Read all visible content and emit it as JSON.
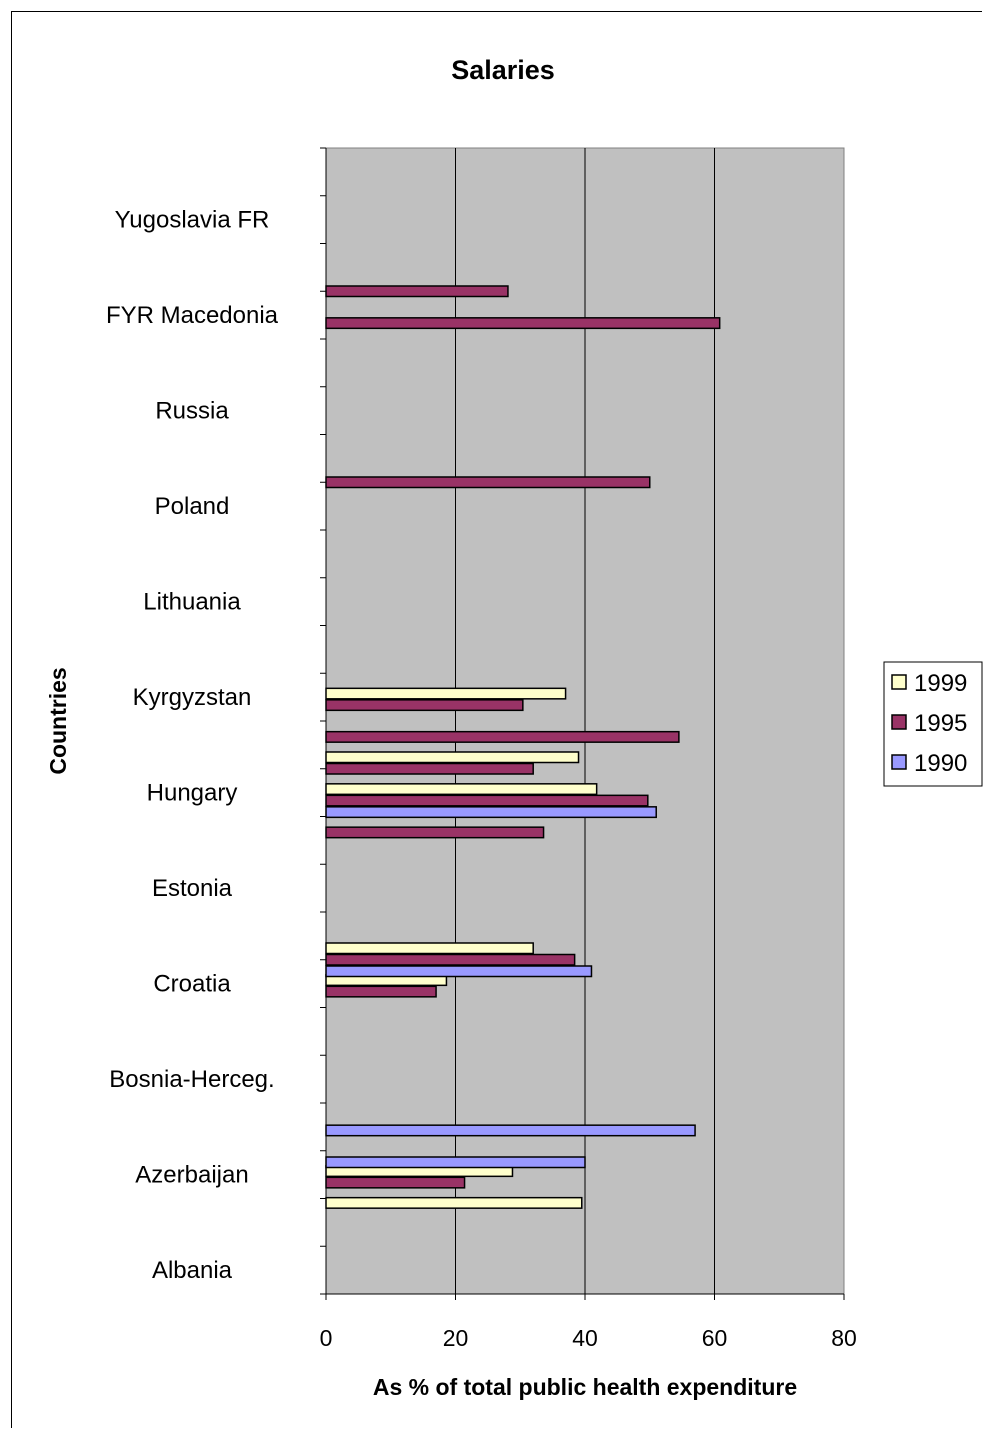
{
  "chart_data": {
    "type": "bar",
    "orientation": "horizontal",
    "title": "Salaries",
    "xlabel": "As % of total public health expenditure",
    "ylabel": "Countries",
    "xlim": [
      0,
      80
    ],
    "xticks": [
      "0",
      "20",
      "40",
      "60",
      "80"
    ],
    "grid": true,
    "legend_position": "right",
    "labeled_categories": [
      "Yugoslavia FR",
      "FYR Macedonia",
      "Russia",
      "Poland",
      "Lithuania",
      "Kyrgyzstan",
      "Hungary",
      "Estonia",
      "Croatia",
      "Bosnia-Herceg.",
      "Azerbaijan",
      "Albania"
    ],
    "series": [
      {
        "name": "1999",
        "color": "#ffffcc",
        "values": [
          null,
          null,
          null,
          null,
          null,
          null,
          null,
          null,
          null,
          null,
          null,
          null,
          null,
          null,
          null,
          null,
          null,
          37,
          null,
          39,
          41.8,
          null,
          null,
          null,
          null,
          32,
          18.6,
          null,
          null,
          null,
          null,
          null,
          28.8,
          39.5,
          null,
          null
        ]
      },
      {
        "name": "1995",
        "color": "#993366",
        "values": [
          null,
          null,
          null,
          null,
          28.1,
          60.8,
          null,
          null,
          null,
          null,
          50,
          null,
          null,
          null,
          null,
          null,
          null,
          30.4,
          54.5,
          32,
          49.7,
          33.6,
          null,
          null,
          null,
          38.4,
          17,
          null,
          null,
          null,
          null,
          null,
          21.4,
          null,
          null,
          null
        ]
      },
      {
        "name": "1990",
        "color": "#9999ff",
        "values": [
          null,
          null,
          null,
          null,
          null,
          null,
          null,
          null,
          null,
          null,
          null,
          null,
          null,
          null,
          null,
          null,
          null,
          null,
          null,
          null,
          51,
          null,
          null,
          null,
          null,
          41,
          null,
          null,
          null,
          null,
          57,
          40,
          null,
          null,
          null,
          null
        ]
      }
    ]
  }
}
